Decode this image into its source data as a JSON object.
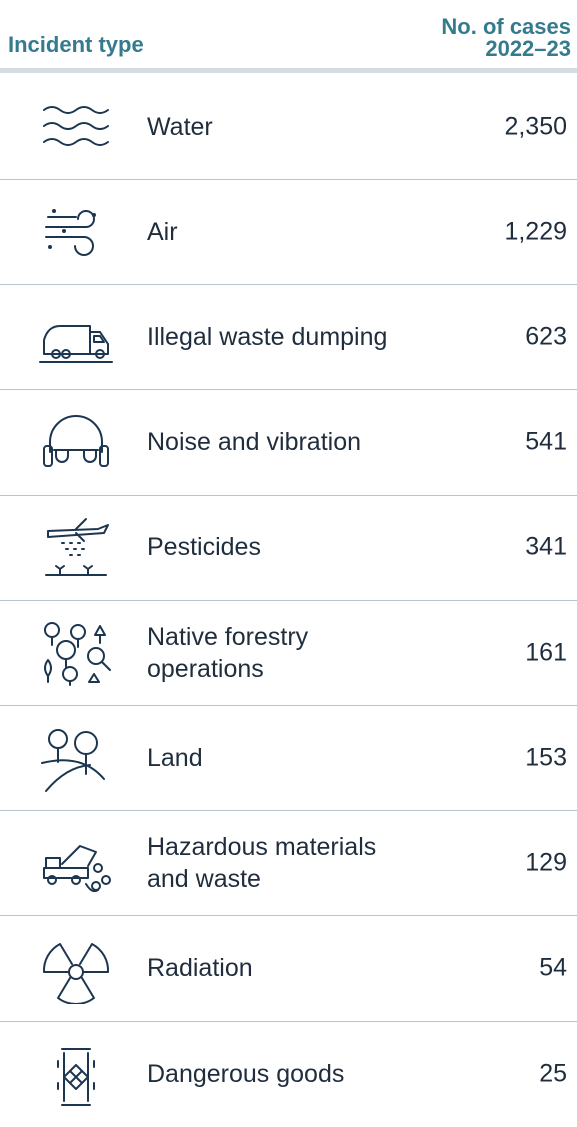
{
  "header": {
    "type_title": "Incident type",
    "count_title": [
      "No. of cases",
      "2022–23"
    ]
  },
  "table": {
    "rows": [
      [
        "Water",
        "2,350"
      ],
      [
        "Air",
        "1,229"
      ],
      [
        "Illegal waste dumping",
        "623"
      ],
      [
        "Noise and vibration",
        "541"
      ],
      [
        "Pesticides",
        "341"
      ],
      [
        "Native forestry operations",
        "161"
      ],
      [
        "Land",
        "153"
      ],
      [
        "Hazardous materials and waste",
        "129"
      ],
      [
        "Radiation",
        "54"
      ],
      [
        "Dangerous goods",
        "25"
      ]
    ]
  }
}
